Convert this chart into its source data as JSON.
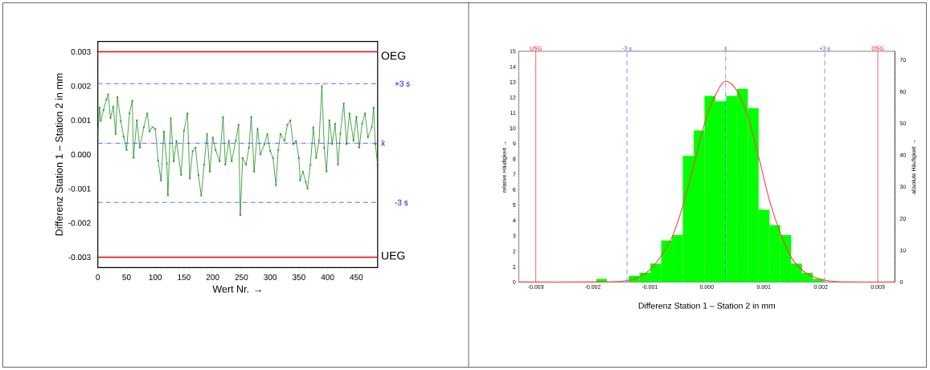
{
  "chart_data": [
    {
      "type": "line",
      "xlabel": "Wert Nr. →",
      "ylabel": "Differenz Station 1 – Station 2 in mm",
      "color": "#007f00",
      "marker": "cross",
      "x": [
        0,
        3,
        5,
        10,
        15,
        18,
        22,
        27,
        31,
        34,
        40,
        45,
        50,
        55,
        60,
        62,
        68,
        73,
        80,
        86,
        90,
        95,
        100,
        105,
        110,
        115,
        120,
        122,
        127,
        132,
        137,
        145,
        150,
        156,
        160,
        165,
        170,
        175,
        180,
        185,
        190,
        195,
        200,
        205,
        212,
        218,
        222,
        228,
        233,
        240,
        245,
        248,
        252,
        258,
        263,
        267,
        272,
        278,
        283,
        290,
        295,
        300,
        305,
        310,
        314,
        318,
        325,
        330,
        335,
        340,
        345,
        350,
        352,
        357,
        362,
        365,
        370,
        375,
        380,
        385,
        390,
        394,
        398,
        403,
        408,
        413,
        418,
        422,
        428,
        433,
        438,
        445,
        450,
        455,
        460,
        465,
        470,
        477,
        480,
        483,
        487
      ],
      "values": [
        0.0006,
        0.00137,
        0.00098,
        0.0013,
        0.0016,
        0.00176,
        0.00106,
        0.0014,
        0.0006,
        0.00168,
        0.00098,
        0.00052,
        0.00013,
        0.0012,
        0.00157,
        -0.0001,
        0.001,
        0.0002,
        0.0008,
        0.0012,
        0.00067,
        0.0008,
        0.00075,
        -0.00018,
        -0.00076,
        0.00067,
        -0.00026,
        -0.00119,
        0.00106,
        -0.0002,
        0.0004,
        -0.0006,
        0.0007,
        0.0012,
        -0.0007,
        0.0001,
        0.0002,
        -0.0006,
        -0.0012,
        -0.0003,
        0.0006,
        -0.0005,
        0.0005,
        0.00013,
        -0.0002,
        0.0011,
        -0.0003,
        0.0004,
        -0.0002,
        0.0004,
        0.00087,
        -0.00177,
        -0.0001,
        -0.0003,
        0.0002,
        0.0011,
        -0.0005,
        0.00075,
        0.0,
        0.0003,
        0.0006,
        0.0001,
        -0.0001,
        -0.0009,
        0.00013,
        0.0006,
        0.0004,
        0.00087,
        0.001,
        0.0003,
        0.0004,
        -0.0001,
        -0.00076,
        -0.0005,
        -0.0008,
        -0.001,
        -0.0003,
        0.0008,
        -0.0001,
        0.0004,
        0.002,
        0.0002,
        -0.0005,
        0.001,
        0.0003,
        0.0009,
        -0.0003,
        0.0006,
        0.00149,
        0.0003,
        0.0012,
        0.0004,
        0.0011,
        0.0002,
        0.0009,
        0.0012,
        0.0005,
        0.0008,
        0.00137,
        0.0003,
        -0.0003
      ],
      "xlim": [
        0,
        487
      ],
      "ylim": [
        -0.0033,
        0.0033
      ],
      "xticks": [
        0,
        50,
        100,
        150,
        200,
        250,
        300,
        350,
        400,
        450
      ],
      "yticks": [
        -0.003,
        -0.002,
        -0.001,
        {
          "value": 0,
          "label": "0.000"
        },
        0.001,
        0.002,
        0.003
      ],
      "ref_lines": [
        {
          "axis": "y",
          "value": 0.003,
          "label": "OEG",
          "color": "#ff0000",
          "line_style": "solid"
        },
        {
          "axis": "y",
          "value": 0.00207,
          "label": "+3 s",
          "color": "#0000ff",
          "line_style": "dashed"
        },
        {
          "axis": "y",
          "value": 0.00033,
          "label": "x̄",
          "color": "#0000ff",
          "line_style": "dashdot"
        },
        {
          "axis": "y",
          "value": -0.0014,
          "label": "-3 s",
          "color": "#0000ff",
          "line_style": "dashed"
        },
        {
          "axis": "y",
          "value": -0.003,
          "label": "UEG",
          "color": "#ff0000",
          "line_style": "solid"
        }
      ]
    },
    {
      "type": "histogram",
      "ylabel": "relative Häufigkeit →",
      "y2label": "absolute Häufigkeit →",
      "color": "#00ff00",
      "bins": [
        -0.00194,
        -0.00175,
        -0.00156,
        -0.00137,
        -0.00118,
        -0.00099,
        -0.0008,
        -0.00061,
        -0.00042,
        -0.00023,
        -4e-05,
        0.00015,
        0.00034,
        0.00053,
        0.00072,
        0.00091,
        0.0011,
        0.00129,
        0.00148,
        0.00167,
        0.00186,
        0.00205
      ],
      "values": [
        0.2,
        0,
        0,
        0.4,
        0.6,
        1.2,
        2.7,
        3.05,
        8.2,
        9.85,
        12.1,
        11.75,
        12.1,
        12.55,
        11.3,
        4.7,
        3.7,
        3.05,
        1.2,
        0.6,
        0.2
      ],
      "series": [
        {
          "type": "line",
          "color": "#ff4040",
          "x": [
            -0.0033,
            -0.002,
            -0.0015,
            -0.0012,
            -0.001,
            -0.0008,
            -0.0006,
            -0.0004,
            -0.0002,
            0,
            0.0002,
            0.00033,
            0.0005,
            0.0007,
            0.0009,
            0.0011,
            0.0013,
            0.0015,
            0.0017,
            0.0019,
            0.0021,
            0.0025,
            0.0033
          ],
          "values": [
            0,
            0,
            0.05,
            0.3,
            0.8,
            1.7,
            3.0,
            5.2,
            8.0,
            10.8,
            12.5,
            13.05,
            12.6,
            11.0,
            8.3,
            5.3,
            3.1,
            1.5,
            0.7,
            0.3,
            0.1,
            0,
            0
          ]
        }
      ],
      "xlim": [
        -0.0033,
        0.0033
      ],
      "ylim": [
        0,
        15
      ],
      "y2lim": [
        0,
        72.7
      ],
      "xticks": [
        -0.003,
        -0.002,
        -0.001,
        {
          "value": 0,
          "label": "0.000"
        },
        0.001,
        0.002,
        0.003
      ],
      "yticks": [
        0,
        1,
        2,
        3,
        4,
        5,
        6,
        7,
        8,
        9,
        10,
        11,
        12,
        13,
        14,
        15
      ],
      "y2ticks": [
        0,
        10,
        20,
        30,
        40,
        50,
        60,
        70
      ],
      "ref_lines": [
        {
          "axis": "x",
          "value": -0.003,
          "label": "USG",
          "color": "#ff0000",
          "line_style": "solid"
        },
        {
          "axis": "x",
          "value": -0.0014,
          "label": "-3 s",
          "color": "#4040ff",
          "line_style": "dashed"
        },
        {
          "axis": "x",
          "value": 0.00033,
          "label": "x̄",
          "color": "#4040ff",
          "line_style": "dashdot"
        },
        {
          "axis": "x",
          "value": 0.00207,
          "label": "+3 s",
          "color": "#4040ff",
          "line_style": "dashed"
        },
        {
          "axis": "x",
          "value": 0.003,
          "label": "OSG",
          "color": "#ff0000",
          "line_style": "solid"
        }
      ],
      "annotations": [
        "Differenz Station 1 – Station 2 in mm"
      ]
    }
  ]
}
